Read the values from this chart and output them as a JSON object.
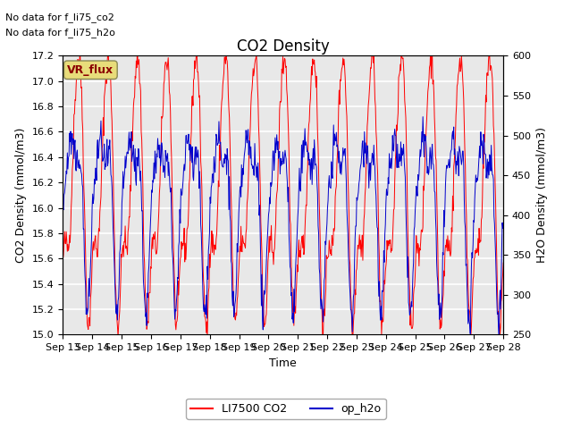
{
  "title": "CO2 Density",
  "xlabel": "Time",
  "ylabel_left": "CO2 Density (mmol/m3)",
  "ylabel_right": "H2O Density (mmol/m3)",
  "ylim_left": [
    15.0,
    17.2
  ],
  "ylim_right": [
    250,
    600
  ],
  "yticks_left": [
    15.0,
    15.2,
    15.4,
    15.6,
    15.8,
    16.0,
    16.2,
    16.4,
    16.6,
    16.8,
    17.0,
    17.2
  ],
  "yticks_right": [
    250,
    300,
    350,
    400,
    450,
    500,
    550,
    600
  ],
  "x_tick_labels": [
    "Sep 13",
    "Sep 14",
    "Sep 15",
    "Sep 16",
    "Sep 17",
    "Sep 18",
    "Sep 19",
    "Sep 20",
    "Sep 21",
    "Sep 22",
    "Sep 23",
    "Sep 24",
    "Sep 25",
    "Sep 26",
    "Sep 27",
    "Sep 28"
  ],
  "annotations": [
    "No data for f_li75_co2",
    "No data for f_li75_h2o"
  ],
  "legend_box_label": "VR_flux",
  "legend_box_color": "#e8dc7a",
  "legend_box_text_color": "#8b0000",
  "legend_entries": [
    "LI7500 CO2",
    "op_h2o"
  ],
  "legend_colors": [
    "#ff0000",
    "#0000cc"
  ],
  "line_color_co2": "#ff0000",
  "line_color_h2o": "#0000cc",
  "bg_color": "#e8e8e8",
  "title_fontsize": 12,
  "label_fontsize": 9,
  "tick_fontsize": 8,
  "annot_fontsize": 8,
  "grid_color": "#ffffff",
  "n_points": 800
}
